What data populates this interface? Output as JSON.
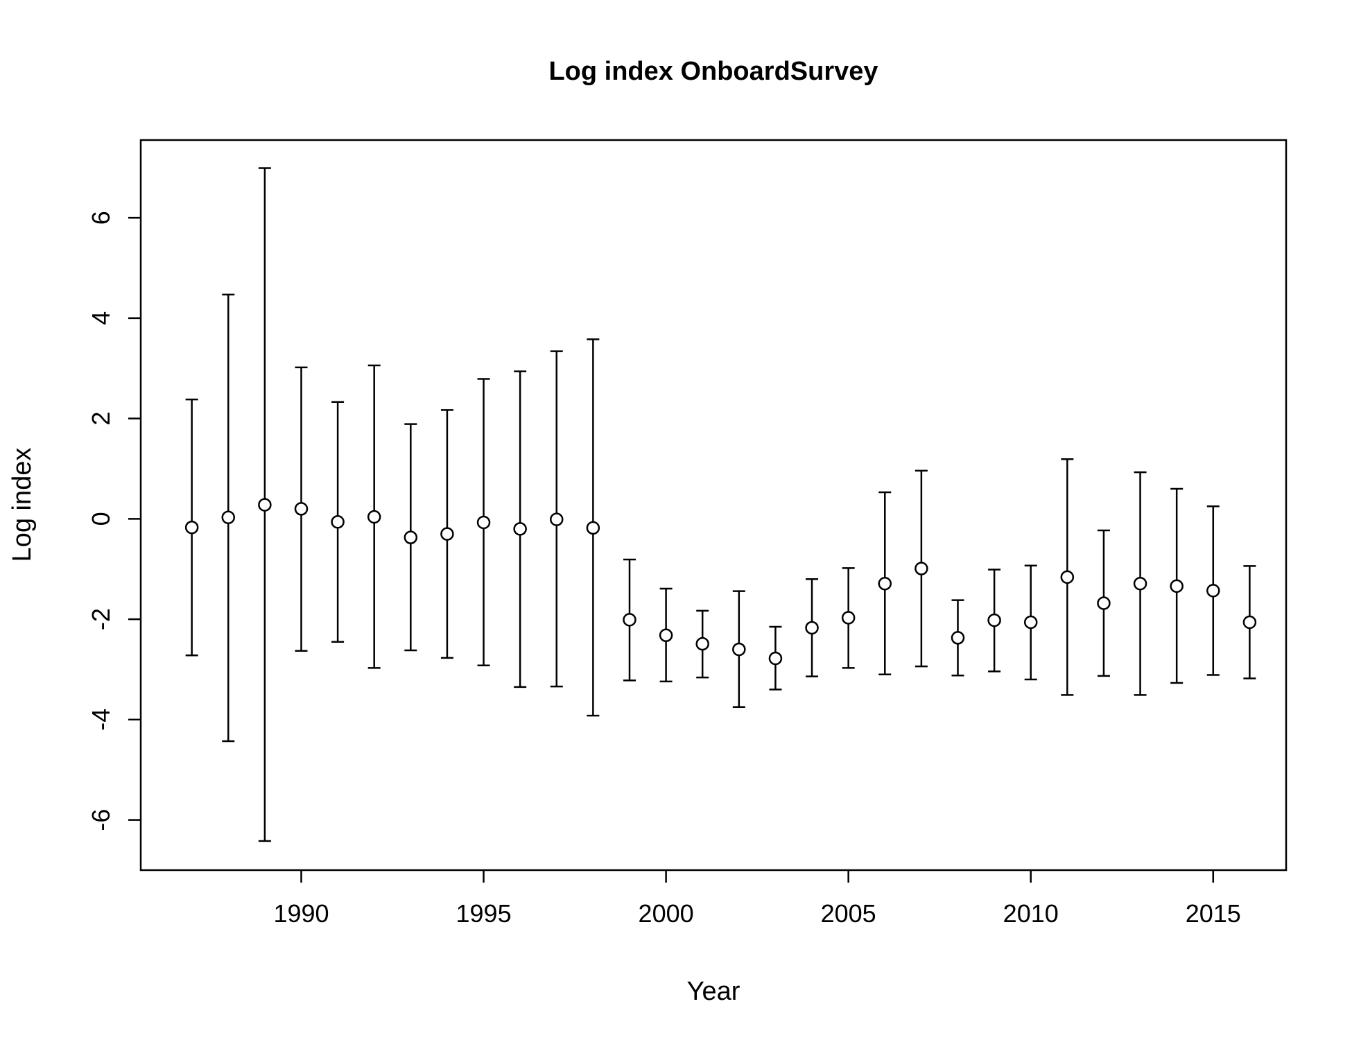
{
  "chart_data": {
    "type": "scatter",
    "title": "Log index OnboardSurvey",
    "xlabel": "Year",
    "ylabel": "Log index",
    "xlim": [
      1985.6,
      2017.0
    ],
    "ylim": [
      -7.0,
      7.55
    ],
    "xticks": [
      1990,
      1995,
      2000,
      2005,
      2010,
      2015
    ],
    "yticks": [
      -6,
      -4,
      -2,
      0,
      2,
      4,
      6
    ],
    "grid": false,
    "legend": "none",
    "series": [
      {
        "points": [
          {
            "x": 1987,
            "y": -0.17,
            "lower": -2.72,
            "upper": 2.38
          },
          {
            "x": 1988,
            "y": 0.03,
            "lower": -4.43,
            "upper": 4.47
          },
          {
            "x": 1989,
            "y": 0.28,
            "lower": -6.42,
            "upper": 6.99
          },
          {
            "x": 1990,
            "y": 0.2,
            "lower": -2.63,
            "upper": 3.02
          },
          {
            "x": 1991,
            "y": -0.06,
            "lower": -2.45,
            "upper": 2.33
          },
          {
            "x": 1992,
            "y": 0.04,
            "lower": -2.97,
            "upper": 3.06
          },
          {
            "x": 1993,
            "y": -0.37,
            "lower": -2.62,
            "upper": 1.89
          },
          {
            "x": 1994,
            "y": -0.3,
            "lower": -2.77,
            "upper": 2.17
          },
          {
            "x": 1995,
            "y": -0.07,
            "lower": -2.92,
            "upper": 2.79
          },
          {
            "x": 1996,
            "y": -0.2,
            "lower": -3.35,
            "upper": 2.94
          },
          {
            "x": 1997,
            "y": -0.01,
            "lower": -3.34,
            "upper": 3.34
          },
          {
            "x": 1998,
            "y": -0.18,
            "lower": -3.92,
            "upper": 3.58
          },
          {
            "x": 1999,
            "y": -2.01,
            "lower": -3.22,
            "upper": -0.81
          },
          {
            "x": 2000,
            "y": -2.32,
            "lower": -3.24,
            "upper": -1.39
          },
          {
            "x": 2001,
            "y": -2.49,
            "lower": -3.16,
            "upper": -1.83
          },
          {
            "x": 2002,
            "y": -2.6,
            "lower": -3.75,
            "upper": -1.44
          },
          {
            "x": 2003,
            "y": -2.78,
            "lower": -3.4,
            "upper": -2.15
          },
          {
            "x": 2004,
            "y": -2.17,
            "lower": -3.14,
            "upper": -1.2
          },
          {
            "x": 2005,
            "y": -1.97,
            "lower": -2.97,
            "upper": -0.98
          },
          {
            "x": 2006,
            "y": -1.29,
            "lower": -3.1,
            "upper": 0.53
          },
          {
            "x": 2007,
            "y": -0.99,
            "lower": -2.94,
            "upper": 0.96
          },
          {
            "x": 2008,
            "y": -2.37,
            "lower": -3.12,
            "upper": -1.62
          },
          {
            "x": 2009,
            "y": -2.02,
            "lower": -3.04,
            "upper": -1.01
          },
          {
            "x": 2010,
            "y": -2.06,
            "lower": -3.2,
            "upper": -0.93
          },
          {
            "x": 2011,
            "y": -1.16,
            "lower": -3.51,
            "upper": 1.19
          },
          {
            "x": 2012,
            "y": -1.68,
            "lower": -3.13,
            "upper": -0.23
          },
          {
            "x": 2013,
            "y": -1.29,
            "lower": -3.51,
            "upper": 0.93
          },
          {
            "x": 2014,
            "y": -1.34,
            "lower": -3.27,
            "upper": 0.6
          },
          {
            "x": 2015,
            "y": -1.43,
            "lower": -3.11,
            "upper": 0.25
          },
          {
            "x": 2016,
            "y": -2.06,
            "lower": -3.18,
            "upper": -0.94
          }
        ]
      }
    ]
  }
}
